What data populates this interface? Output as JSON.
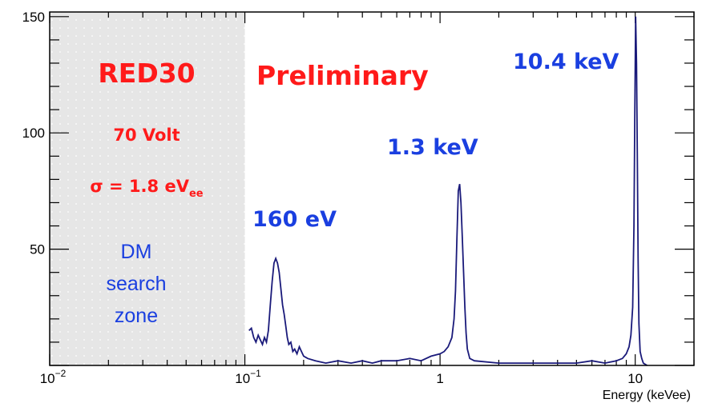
{
  "chart_data": {
    "type": "line",
    "title": "",
    "xlabel": "Energy (keVee)",
    "ylabel": "",
    "x_scale": "log",
    "xlim": [
      0.01,
      20
    ],
    "ylim": [
      0,
      152
    ],
    "x_ticks": [
      {
        "value": 0.01,
        "base": "10",
        "exp": "−2"
      },
      {
        "value": 0.1,
        "base": "10",
        "exp": "−1"
      },
      {
        "value": 1,
        "base": "1",
        "exp": ""
      },
      {
        "value": 10,
        "base": "10",
        "exp": ""
      }
    ],
    "y_ticks": [
      {
        "value": 50,
        "label": "50"
      },
      {
        "value": 100,
        "label": "100"
      },
      {
        "value": 150,
        "label": "150"
      }
    ],
    "grid": false,
    "series": [
      {
        "color": "#1a1a7a",
        "x": [
          0.105,
          0.108,
          0.111,
          0.114,
          0.117,
          0.12,
          0.123,
          0.126,
          0.129,
          0.132,
          0.135,
          0.138,
          0.141,
          0.144,
          0.147,
          0.15,
          0.153,
          0.156,
          0.159,
          0.162,
          0.165,
          0.168,
          0.172,
          0.176,
          0.18,
          0.185,
          0.19,
          0.195,
          0.2,
          0.21,
          0.23,
          0.26,
          0.3,
          0.35,
          0.4,
          0.45,
          0.5,
          0.6,
          0.7,
          0.8,
          0.9,
          1.0,
          1.05,
          1.1,
          1.15,
          1.18,
          1.2,
          1.22,
          1.24,
          1.26,
          1.28,
          1.3,
          1.32,
          1.34,
          1.36,
          1.38,
          1.42,
          1.5,
          2.0,
          3.0,
          4.0,
          5.0,
          6.0,
          7.0,
          8.0,
          8.6,
          9.0,
          9.3,
          9.5,
          9.7,
          9.85,
          9.95,
          10.05,
          10.15,
          10.25,
          10.35,
          10.45,
          10.6,
          10.8,
          11.0,
          11.5
        ],
        "y": [
          15,
          16,
          12,
          10,
          13,
          11,
          9,
          12,
          10,
          15,
          26,
          36,
          44,
          46,
          44,
          40,
          33,
          26,
          22,
          17,
          12,
          9,
          10,
          6,
          7,
          5,
          8,
          6,
          4,
          3,
          2,
          1,
          2,
          1,
          2,
          1,
          2,
          2,
          3,
          2,
          4,
          5,
          6,
          8,
          12,
          20,
          32,
          55,
          75,
          78,
          70,
          55,
          40,
          25,
          14,
          7,
          3,
          2,
          1,
          1,
          1,
          1,
          2,
          1,
          2,
          3,
          5,
          8,
          13,
          25,
          60,
          110,
          150,
          130,
          90,
          45,
          18,
          6,
          3,
          1,
          0
        ]
      }
    ],
    "annotations": [
      {
        "text": "RED30",
        "color": "#ff1a1a"
      },
      {
        "text": "Preliminary",
        "color": "#ff1a1a"
      },
      {
        "text": "70 Volt",
        "color": "#ff1a1a"
      },
      {
        "text": "σ = 1.8 eV",
        "sub": "ee",
        "color": "#ff1a1a"
      },
      {
        "text": "160 eV",
        "color": "#1a3fe0"
      },
      {
        "text": "1.3 keV",
        "color": "#1a3fe0"
      },
      {
        "text": "10.4 keV",
        "color": "#1a3fe0"
      },
      {
        "text": "DM search zone",
        "lines": [
          "DM",
          "search",
          "zone"
        ],
        "color": "#1a3fe0"
      }
    ],
    "shaded_region": {
      "x": [
        0.01,
        0.1
      ],
      "color": "#e3e3e3",
      "label": "DM search zone"
    }
  }
}
